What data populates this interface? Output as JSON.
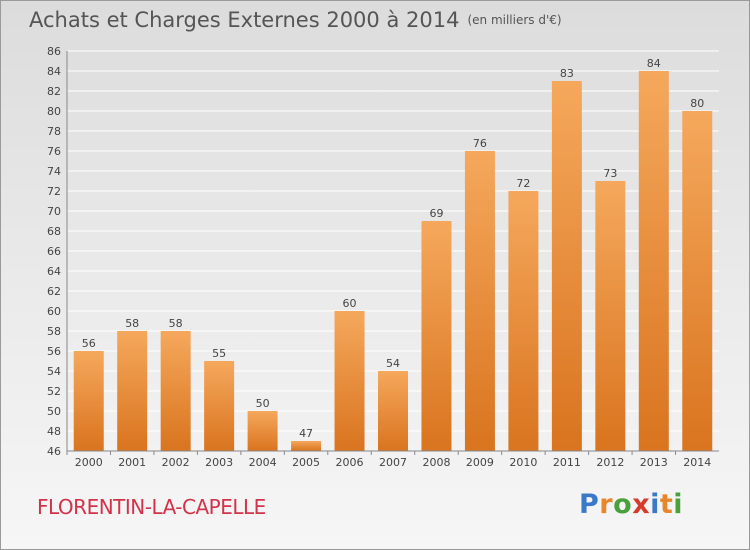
{
  "title": "Achats et Charges Externes 2000 à 2014",
  "unit": "(en milliers d'€)",
  "commune": "FLORENTIN-LA-CAPELLE",
  "brand": {
    "text": "Proxiti",
    "letter_colors": [
      "#3a78c8",
      "#e8862a",
      "#4aa03a",
      "#d63a2a",
      "#3a78c8",
      "#e8862a",
      "#4aa03a"
    ]
  },
  "colors": {
    "bar_top": "#f5a85c",
    "bar_bottom": "#d9741f",
    "grid": "#ffffff",
    "axis": "#888888",
    "label": "#444444"
  },
  "chart_data": {
    "type": "bar",
    "title": "Achats et Charges Externes 2000 à 2014",
    "xlabel": "",
    "ylabel": "",
    "ylim": [
      46,
      86
    ],
    "ytick_step": 2,
    "grid": true,
    "categories": [
      "2000",
      "2001",
      "2002",
      "2003",
      "2004",
      "2005",
      "2006",
      "2007",
      "2008",
      "2009",
      "2010",
      "2011",
      "2012",
      "2013",
      "2014"
    ],
    "values": [
      56,
      58,
      58,
      55,
      50,
      47,
      60,
      54,
      69,
      76,
      72,
      83,
      73,
      84,
      80
    ]
  }
}
